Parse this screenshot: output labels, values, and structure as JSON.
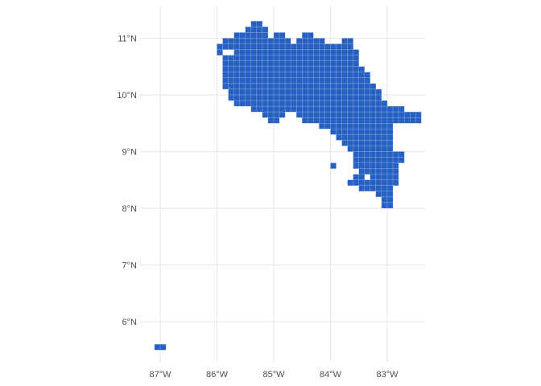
{
  "chart_data": {
    "type": "grid-map",
    "title": "",
    "xlabel": "",
    "ylabel": "",
    "xlim": [
      -87.47,
      -82.15
    ],
    "ylim": [
      5.3,
      11.55
    ],
    "grid": true,
    "fill_color": "#2660c4",
    "cell_edge_color": "#9fb6d6",
    "cell_size_deg": 0.1,
    "x_ticks": [
      {
        "value": -87,
        "label": "87°W"
      },
      {
        "value": -86,
        "label": "86°W"
      },
      {
        "value": -85,
        "label": "85°W"
      },
      {
        "value": -84,
        "label": "84°W"
      },
      {
        "value": -83,
        "label": "83°W"
      }
    ],
    "y_ticks": [
      {
        "value": 6,
        "label": "6°N"
      },
      {
        "value": 7,
        "label": "7°N"
      },
      {
        "value": 8,
        "label": "8°N"
      },
      {
        "value": 9,
        "label": "9°N"
      },
      {
        "value": 10,
        "label": "10°N"
      },
      {
        "value": 11,
        "label": "11°N"
      }
    ],
    "cell_rows": [
      {
        "lat": 11.25,
        "ranges": [
          [
            -85.35,
            -85.25
          ]
        ]
      },
      {
        "lat": 11.15,
        "ranges": [
          [
            -85.45,
            -85.15
          ]
        ]
      },
      {
        "lat": 11.05,
        "ranges": [
          [
            -85.65,
            -85.15
          ],
          [
            -84.95,
            -84.85
          ],
          [
            -84.45,
            -84.35
          ]
        ]
      },
      {
        "lat": 10.95,
        "ranges": [
          [
            -85.85,
            -84.75
          ],
          [
            -84.55,
            -84.15
          ],
          [
            -83.75,
            -83.65
          ]
        ]
      },
      {
        "lat": 10.85,
        "ranges": [
          [
            -85.95,
            -83.65
          ]
        ]
      },
      {
        "lat": 10.75,
        "ranges": [
          [
            -85.95,
            -85.95
          ],
          [
            -85.65,
            -83.55
          ]
        ]
      },
      {
        "lat": 10.65,
        "ranges": [
          [
            -85.85,
            -83.55
          ]
        ]
      },
      {
        "lat": 10.55,
        "ranges": [
          [
            -85.85,
            -83.55
          ]
        ]
      },
      {
        "lat": 10.45,
        "ranges": [
          [
            -85.85,
            -83.45
          ]
        ]
      },
      {
        "lat": 10.35,
        "ranges": [
          [
            -85.85,
            -83.35
          ]
        ]
      },
      {
        "lat": 10.25,
        "ranges": [
          [
            -85.85,
            -83.35
          ]
        ]
      },
      {
        "lat": 10.15,
        "ranges": [
          [
            -85.85,
            -83.25
          ]
        ]
      },
      {
        "lat": 10.05,
        "ranges": [
          [
            -85.75,
            -83.15
          ]
        ]
      },
      {
        "lat": 9.95,
        "ranges": [
          [
            -85.75,
            -83.15
          ]
        ]
      },
      {
        "lat": 9.85,
        "ranges": [
          [
            -85.65,
            -83.05
          ]
        ]
      },
      {
        "lat": 9.75,
        "ranges": [
          [
            -85.35,
            -84.75
          ],
          [
            -84.65,
            -82.75
          ]
        ]
      },
      {
        "lat": 9.65,
        "ranges": [
          [
            -85.15,
            -84.85
          ],
          [
            -84.55,
            -82.45
          ]
        ]
      },
      {
        "lat": 9.55,
        "ranges": [
          [
            -85.05,
            -84.95
          ],
          [
            -84.45,
            -82.45
          ]
        ]
      },
      {
        "lat": 9.45,
        "ranges": [
          [
            -84.15,
            -82.95
          ]
        ]
      },
      {
        "lat": 9.35,
        "ranges": [
          [
            -83.95,
            -82.95
          ]
        ]
      },
      {
        "lat": 9.25,
        "ranges": [
          [
            -83.85,
            -82.95
          ]
        ]
      },
      {
        "lat": 9.15,
        "ranges": [
          [
            -83.75,
            -82.95
          ]
        ]
      },
      {
        "lat": 9.05,
        "ranges": [
          [
            -83.65,
            -82.95
          ]
        ]
      },
      {
        "lat": 8.95,
        "ranges": [
          [
            -83.55,
            -82.75
          ]
        ]
      },
      {
        "lat": 8.85,
        "ranges": [
          [
            -83.55,
            -82.75
          ]
        ]
      },
      {
        "lat": 8.75,
        "ranges": [
          [
            -83.55,
            -82.85
          ]
        ]
      },
      {
        "lat": 8.65,
        "ranges": [
          [
            -83.45,
            -82.85
          ]
        ]
      },
      {
        "lat": 8.55,
        "ranges": [
          [
            -83.55,
            -83.45
          ],
          [
            -83.25,
            -82.85
          ]
        ]
      },
      {
        "lat": 8.45,
        "ranges": [
          [
            -83.65,
            -83.05
          ],
          [
            -82.95,
            -82.85
          ]
        ]
      },
      {
        "lat": 8.35,
        "ranges": [
          [
            -83.45,
            -82.95
          ]
        ]
      },
      {
        "lat": 8.25,
        "ranges": [
          [
            -83.15,
            -82.95
          ]
        ]
      },
      {
        "lat": 8.15,
        "ranges": [
          [
            -83.05,
            -82.95
          ]
        ]
      },
      {
        "lat": 8.05,
        "ranges": [
          [
            -83.05,
            -82.95
          ]
        ]
      },
      {
        "lat": 5.55,
        "ranges": [
          [
            -87.05,
            -86.95
          ]
        ]
      }
    ],
    "extra_cells": [
      [
        -83.95,
        8.75
      ]
    ]
  }
}
